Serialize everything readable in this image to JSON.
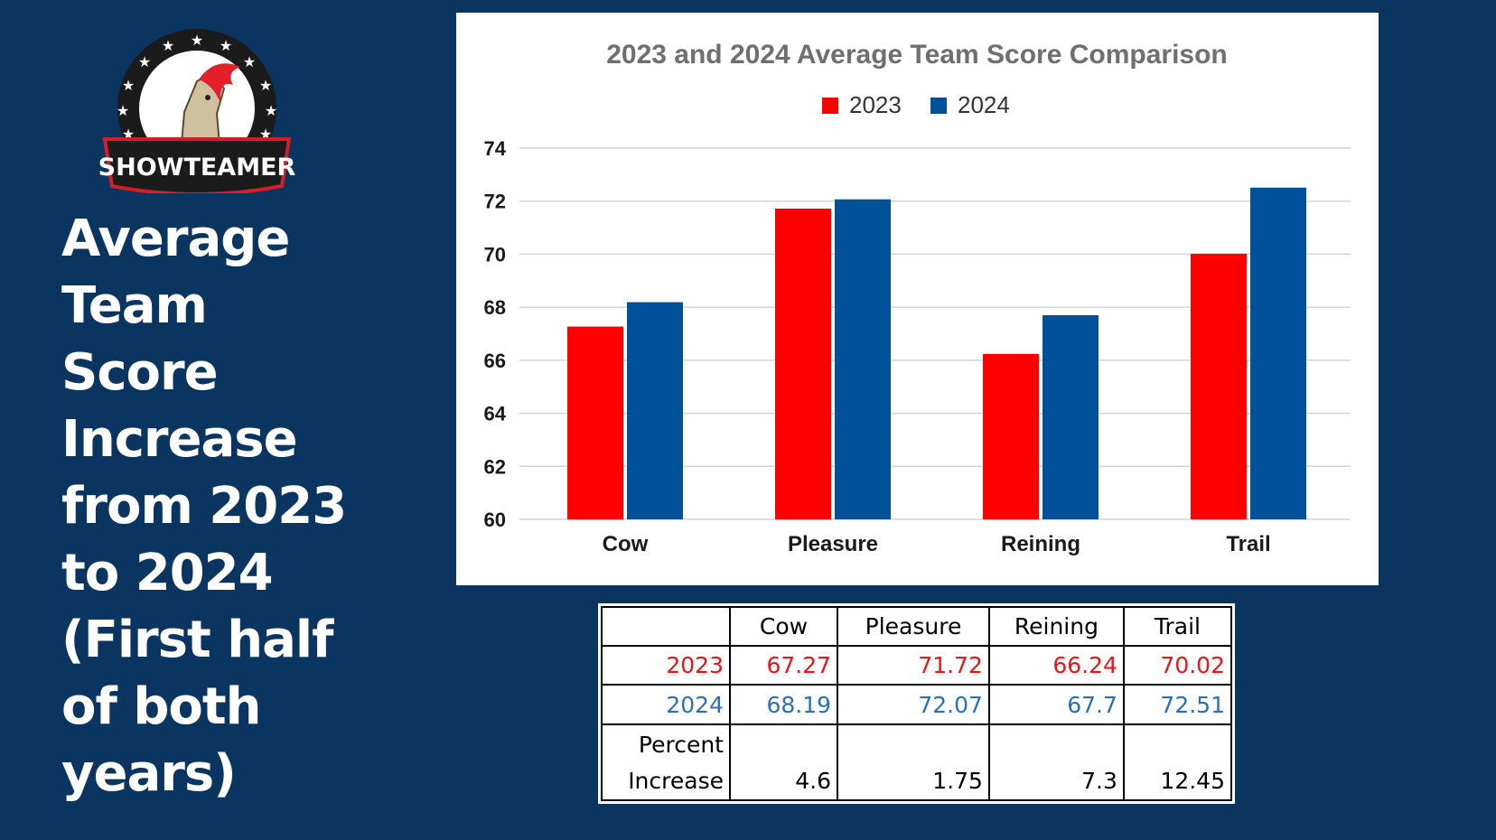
{
  "logo": {
    "text": "SHOWTEAMER"
  },
  "headline_lines": [
    "Average",
    "Team",
    "Score",
    "Increase",
    "from 2023",
    "to 2024",
    "(First half",
    "of both",
    "years)"
  ],
  "colors": {
    "background": "#0b3561",
    "series_2023": "#ff0000",
    "series_2024": "#01519a",
    "table_2023": "#e8141a",
    "table_2024": "#2c6fb8"
  },
  "chart_data": {
    "type": "bar",
    "title": "2023 and 2024 Average Team Score Comparison",
    "categories": [
      "Cow",
      "Pleasure",
      "Reining",
      "Trail"
    ],
    "series": [
      {
        "name": "2023",
        "values": [
          67.27,
          71.72,
          66.24,
          70.02
        ]
      },
      {
        "name": "2024",
        "values": [
          68.19,
          72.07,
          67.7,
          72.51
        ]
      }
    ],
    "ylim": [
      60,
      74
    ],
    "yticks": [
      "60",
      "62",
      "64",
      "66",
      "68",
      "70",
      "72",
      "74"
    ],
    "grid": true,
    "legend": "top-center"
  },
  "table": {
    "headers": [
      "",
      "Cow",
      "Pleasure",
      "Reining",
      "Trail"
    ],
    "row_2023": {
      "label": "2023",
      "values": [
        "67.27",
        "71.72",
        "66.24",
        "70.02"
      ]
    },
    "row_2024": {
      "label": "2024",
      "values": [
        "68.19",
        "72.07",
        "67.7",
        "72.51"
      ]
    },
    "row_pct": {
      "label_line1": "Percent",
      "label_line2": "Increase",
      "values": [
        "4.6",
        "1.75",
        "7.3",
        "12.45"
      ]
    }
  }
}
